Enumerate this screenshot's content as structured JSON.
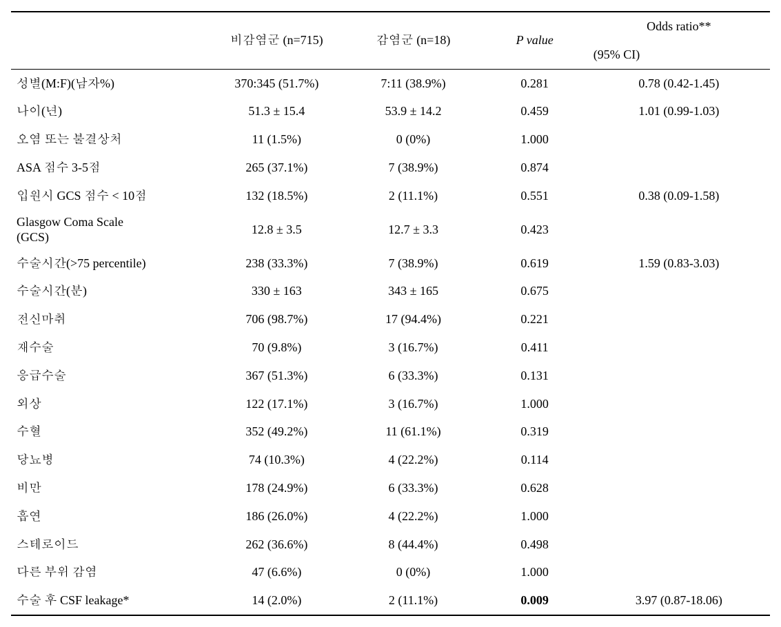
{
  "columns": {
    "empty": "",
    "noninf": "비감염군 (n=715)",
    "inf": "감염군 (n=18)",
    "pval": "P value",
    "or_top": "Odds ratio**",
    "or_bottom": "(95% CI)"
  },
  "rows": [
    {
      "label": "성별(M:F)(남자%)",
      "c1": "370:345 (51.7%)",
      "c2": "7:11 (38.9%)",
      "p": "0.281",
      "or": "0.78 (0.42-1.45)",
      "pbold": false
    },
    {
      "label": "나이(년)",
      "c1": "51.3 ± 15.4",
      "c2": "53.9 ± 14.2",
      "p": "0.459",
      "or": "1.01 (0.99-1.03)",
      "pbold": false
    },
    {
      "label": "오염 또는 불결상처",
      "c1": "11 (1.5%)",
      "c2": "0 (0%)",
      "p": "1.000",
      "or": "",
      "pbold": false
    },
    {
      "label": "ASA 점수 3-5점",
      "c1": "265 (37.1%)",
      "c2": "7 (38.9%)",
      "p": "0.874",
      "or": "",
      "pbold": false
    },
    {
      "label": "입원시 GCS 점수 < 10점",
      "c1": "132 (18.5%)",
      "c2": "2 (11.1%)",
      "p": "0.551",
      "or": "0.38 (0.09-1.58)",
      "pbold": false
    },
    {
      "label": "Glasgow Coma Scale\n (GCS)",
      "c1": "12.8 ± 3.5",
      "c2": "12.7 ± 3.3",
      "p": "0.423",
      "or": "",
      "pbold": false,
      "multiline": true
    },
    {
      "label": "수술시간(>75 percentile)",
      "c1": "238 (33.3%)",
      "c2": "7 (38.9%)",
      "p": "0.619",
      "or": "1.59 (0.83-3.03)",
      "pbold": false
    },
    {
      "label": "수술시간(분)",
      "c1": "330 ± 163",
      "c2": "343 ± 165",
      "p": "0.675",
      "or": "",
      "pbold": false
    },
    {
      "label": "전신마취",
      "c1": "706 (98.7%)",
      "c2": "17 (94.4%)",
      "p": "0.221",
      "or": "",
      "pbold": false
    },
    {
      "label": "재수술",
      "c1": "70 (9.8%)",
      "c2": "3 (16.7%)",
      "p": "0.411",
      "or": "",
      "pbold": false
    },
    {
      "label": "응급수술",
      "c1": "367 (51.3%)",
      "c2": "6 (33.3%)",
      "p": "0.131",
      "or": "",
      "pbold": false
    },
    {
      "label": "외상",
      "c1": "122 (17.1%)",
      "c2": "3 (16.7%)",
      "p": "1.000",
      "or": "",
      "pbold": false
    },
    {
      "label": "수혈",
      "c1": "352 (49.2%)",
      "c2": "11 (61.1%)",
      "p": "0.319",
      "or": "",
      "pbold": false
    },
    {
      "label": "당뇨병",
      "c1": "74 (10.3%)",
      "c2": "4 (22.2%)",
      "p": "0.114",
      "or": "",
      "pbold": false
    },
    {
      "label": "비만",
      "c1": "178 (24.9%)",
      "c2": "6 (33.3%)",
      "p": "0.628",
      "or": "",
      "pbold": false
    },
    {
      "label": "흡연",
      "c1": "186 (26.0%)",
      "c2": "4 (22.2%)",
      "p": "1.000",
      "or": "",
      "pbold": false
    },
    {
      "label": "스테로이드",
      "c1": "262 (36.6%)",
      "c2": "8 (44.4%)",
      "p": "0.498",
      "or": "",
      "pbold": false
    },
    {
      "label": "다른 부위 감염",
      "c1": "47 (6.6%)",
      "c2": "0 (0%)",
      "p": "1.000",
      "or": "",
      "pbold": false
    },
    {
      "label": "수술 후 CSF leakage*",
      "c1": "14 (2.0%)",
      "c2": "2 (11.1%)",
      "p": "0.009",
      "or": "3.97 (0.87-18.06)",
      "pbold": true
    }
  ]
}
